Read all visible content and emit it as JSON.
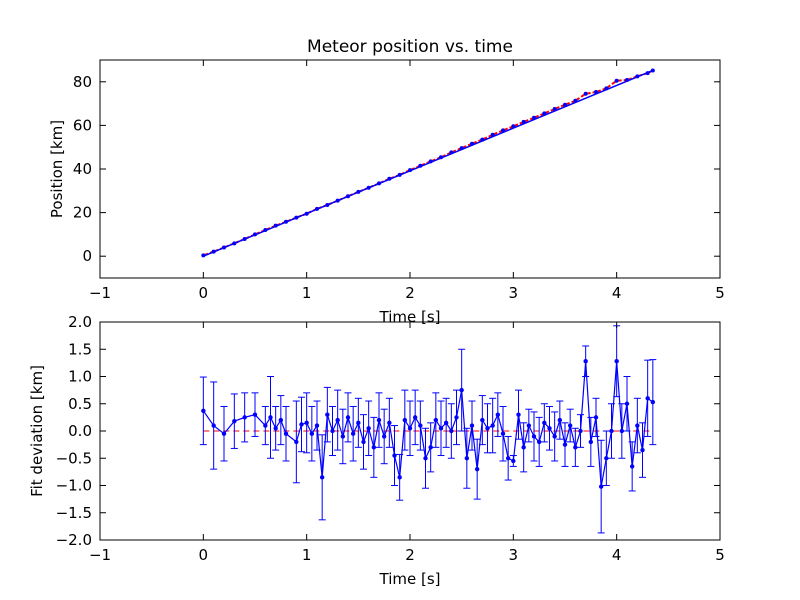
{
  "chart_data": [
    {
      "type": "scatter",
      "title": "Meteor position vs. time",
      "xlabel": "Time [s]",
      "ylabel": "Position [km]",
      "xlim": [
        -1,
        5
      ],
      "ylim": [
        -10,
        90
      ],
      "xticks": [
        "−1",
        "0",
        "1",
        "2",
        "3",
        "4",
        "5"
      ],
      "yticks": [
        "0",
        "20",
        "40",
        "60",
        "80"
      ],
      "grid": false,
      "colors": {
        "points": "#ff0000",
        "fit": "#0000ff",
        "axes": "#000000"
      },
      "series": [
        {
          "x": [
            0.0,
            0.1,
            0.2,
            0.3,
            0.4,
            0.5,
            0.6,
            0.7,
            0.8,
            0.9,
            1.0,
            1.1,
            1.2,
            1.3,
            1.4,
            1.5,
            1.6,
            1.7,
            1.8,
            1.9,
            2.0,
            2.1,
            2.2,
            2.3,
            2.4,
            2.5,
            2.6,
            2.7,
            2.8,
            2.9,
            3.0,
            3.1,
            3.2,
            3.3,
            3.4,
            3.5,
            3.6,
            3.7,
            3.8,
            3.9,
            4.0,
            4.1,
            4.2,
            4.3,
            4.35
          ],
          "y": [
            0.4,
            2.1,
            4.0,
            5.9,
            7.9,
            10.0,
            12.0,
            14.0,
            15.8,
            17.7,
            19.5,
            21.7,
            23.5,
            25.5,
            27.5,
            29.5,
            31.4,
            33.4,
            35.5,
            37.3,
            39.5,
            41.5,
            43.5,
            45.4,
            47.6,
            49.6,
            51.6,
            53.5,
            55.7,
            57.7,
            59.6,
            61.6,
            63.5,
            65.5,
            67.5,
            69.5,
            71.3,
            74.5,
            75.3,
            77.0,
            80.5,
            80.8,
            82.5,
            84.0,
            85.2
          ]
        }
      ],
      "fit": {
        "x": [
          0,
          4.35
        ],
        "y": [
          0,
          85.2
        ]
      }
    },
    {
      "type": "line",
      "xlabel": "Time [s]",
      "ylabel": "Fit deviation [km]",
      "xlim": [
        -1,
        5
      ],
      "ylim": [
        -2.0,
        2.0
      ],
      "xticks": [
        "−1",
        "0",
        "1",
        "2",
        "3",
        "4",
        "5"
      ],
      "yticks": [
        "−2.0",
        "−1.5",
        "−1.0",
        "−0.5",
        "0.0",
        "0.5",
        "1.0",
        "1.5",
        "2.0"
      ],
      "grid": false,
      "colors": {
        "series": "#0000ff",
        "zero_line": "#ff0000",
        "axes": "#000000"
      },
      "series": [
        {
          "x": [
            0.0,
            0.1,
            0.2,
            0.3,
            0.4,
            0.5,
            0.6,
            0.65,
            0.7,
            0.75,
            0.8,
            0.9,
            0.95,
            1.0,
            1.05,
            1.1,
            1.15,
            1.2,
            1.25,
            1.3,
            1.35,
            1.4,
            1.45,
            1.5,
            1.55,
            1.6,
            1.65,
            1.7,
            1.75,
            1.8,
            1.85,
            1.9,
            1.95,
            2.0,
            2.05,
            2.1,
            2.15,
            2.2,
            2.25,
            2.3,
            2.35,
            2.4,
            2.45,
            2.5,
            2.55,
            2.6,
            2.65,
            2.7,
            2.75,
            2.8,
            2.85,
            2.9,
            2.95,
            3.0,
            3.05,
            3.1,
            3.15,
            3.2,
            3.25,
            3.3,
            3.35,
            3.4,
            3.45,
            3.5,
            3.55,
            3.6,
            3.65,
            3.7,
            3.75,
            3.8,
            3.85,
            3.9,
            3.95,
            4.0,
            4.05,
            4.1,
            4.15,
            4.2,
            4.25,
            4.3,
            4.35
          ],
          "y": [
            0.37,
            0.1,
            -0.05,
            0.18,
            0.25,
            0.3,
            0.1,
            0.25,
            0.05,
            0.2,
            -0.05,
            -0.2,
            0.12,
            0.15,
            -0.05,
            0.1,
            -0.85,
            0.3,
            0.0,
            0.2,
            -0.1,
            0.25,
            -0.05,
            0.15,
            -0.2,
            0.05,
            -0.3,
            0.2,
            -0.1,
            0.15,
            -0.45,
            -0.85,
            0.2,
            0.05,
            0.25,
            0.1,
            -0.5,
            -0.3,
            0.2,
            0.05,
            0.15,
            0.0,
            0.25,
            0.75,
            -0.5,
            0.1,
            -0.7,
            0.2,
            0.05,
            0.1,
            0.3,
            -0.05,
            -0.5,
            -0.55,
            0.3,
            -0.3,
            0.1,
            -0.1,
            -0.2,
            0.15,
            0.05,
            -0.1,
            0.2,
            -0.25,
            0.1,
            -0.3,
            0.0,
            1.28,
            -0.2,
            0.25,
            -1.02,
            -0.5,
            0.0,
            1.28,
            0.0,
            0.5,
            -0.65,
            0.1,
            -0.35,
            0.6,
            0.53
          ],
          "error": [
            0.62,
            0.8,
            0.5,
            0.5,
            0.45,
            0.4,
            0.35,
            0.75,
            0.4,
            0.45,
            0.5,
            0.75,
            0.5,
            0.55,
            0.5,
            0.45,
            0.78,
            0.5,
            0.45,
            0.55,
            0.5,
            0.45,
            0.5,
            0.45,
            0.5,
            0.5,
            0.55,
            0.5,
            0.5,
            0.45,
            0.55,
            0.42,
            0.55,
            0.5,
            0.5,
            0.45,
            0.55,
            0.45,
            0.5,
            0.5,
            0.45,
            0.5,
            0.5,
            0.75,
            0.55,
            0.45,
            0.55,
            0.45,
            0.45,
            0.5,
            0.4,
            0.5,
            0.4,
            0.1,
            0.45,
            0.45,
            0.3,
            0.45,
            0.45,
            0.35,
            0.4,
            0.45,
            0.35,
            0.4,
            0.3,
            0.35,
            0.3,
            0.28,
            0.45,
            0.35,
            0.85,
            0.5,
            0.5,
            0.65,
            0.5,
            0.5,
            0.45,
            0.5,
            0.5,
            0.7,
            0.78
          ]
        }
      ]
    }
  ]
}
